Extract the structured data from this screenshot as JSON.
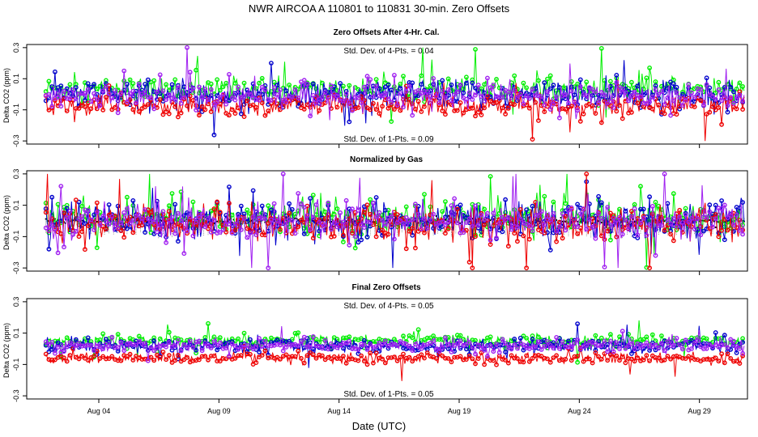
{
  "title": "NWR   AIRCOA A   110801 to 110831   30-min. Zero Offsets",
  "xlabel": "Date (UTC)",
  "colors": {
    "green": "#00ee00",
    "blue": "#0000cc",
    "red": "#ee0000",
    "purple": "#a020f0",
    "black": "#000000"
  },
  "chart_data": [
    {
      "type": "scatter",
      "title": "Zero Offsets After 4-Hr. Cal.",
      "ylabel": "Delta CO2 (ppm)",
      "annotation_top": "Std. Dev. of 4-Pts. =  0.04",
      "annotation_bottom": "Std. Dev. of 1-Pts. =  0.09",
      "xlim": [
        "2011-08-01",
        "2011-08-31"
      ],
      "ylim": [
        -0.32,
        0.32
      ],
      "yticks": [
        -0.3,
        -0.1,
        0.1,
        0.3
      ],
      "ytick_labels": [
        "-0.3",
        "-0.1",
        "0.1",
        "0.3"
      ],
      "xticks": [
        "Aug 04",
        "Aug 09",
        "Aug 14",
        "Aug 19",
        "Aug 24",
        "Aug 29"
      ],
      "series": [
        {
          "color": "#00ee00",
          "center": 0.03,
          "spread": 0.07
        },
        {
          "color": "#0000cc",
          "center": 0.0,
          "spread": 0.08
        },
        {
          "color": "#ee0000",
          "center": -0.07,
          "spread": 0.06
        },
        {
          "color": "#a020f0",
          "center": -0.01,
          "spread": 0.07
        }
      ]
    },
    {
      "type": "scatter",
      "title": "Normalized by Gas",
      "ylabel": "Delta CO2 (ppm)",
      "annotation_top": "",
      "annotation_bottom": "",
      "xlim": [
        "2011-08-01",
        "2011-08-31"
      ],
      "ylim": [
        -0.32,
        0.32
      ],
      "yticks": [
        -0.3,
        -0.1,
        0.1,
        0.3
      ],
      "ytick_labels": [
        "-0.3",
        "-0.1",
        "0.1",
        "0.3"
      ],
      "xticks": [
        "Aug 04",
        "Aug 09",
        "Aug 14",
        "Aug 19",
        "Aug 24",
        "Aug 29"
      ],
      "series": [
        {
          "color": "#000000",
          "center": 0.0,
          "spread": 0.015
        },
        {
          "color": "#00ee00",
          "center": 0.02,
          "spread": 0.1
        },
        {
          "color": "#0000cc",
          "center": 0.0,
          "spread": 0.11
        },
        {
          "color": "#ee0000",
          "center": -0.02,
          "spread": 0.1
        },
        {
          "color": "#a020f0",
          "center": 0.0,
          "spread": 0.1
        }
      ]
    },
    {
      "type": "scatter",
      "title": "Final Zero Offsets",
      "ylabel": "Delta CO2 (ppm)",
      "annotation_top": "Std. Dev. of 4-Pts. =  0.05",
      "annotation_bottom": "Std. Dev. of 1-Pts. =  0.05",
      "xlim": [
        "2011-08-01",
        "2011-08-31"
      ],
      "ylim": [
        -0.32,
        0.32
      ],
      "yticks": [
        -0.3,
        -0.1,
        0.1,
        0.3
      ],
      "ytick_labels": [
        "-0.3",
        "-0.1",
        "0.1",
        "0.3"
      ],
      "xticks": [
        "Aug 04",
        "Aug 09",
        "Aug 14",
        "Aug 19",
        "Aug 24",
        "Aug 29"
      ],
      "series": [
        {
          "color": "#00ee00",
          "center": 0.05,
          "spread": 0.035
        },
        {
          "color": "#0000cc",
          "center": 0.02,
          "spread": 0.04
        },
        {
          "color": "#ee0000",
          "center": -0.06,
          "spread": 0.03
        },
        {
          "color": "#a020f0",
          "center": 0.02,
          "spread": 0.035
        }
      ]
    }
  ]
}
